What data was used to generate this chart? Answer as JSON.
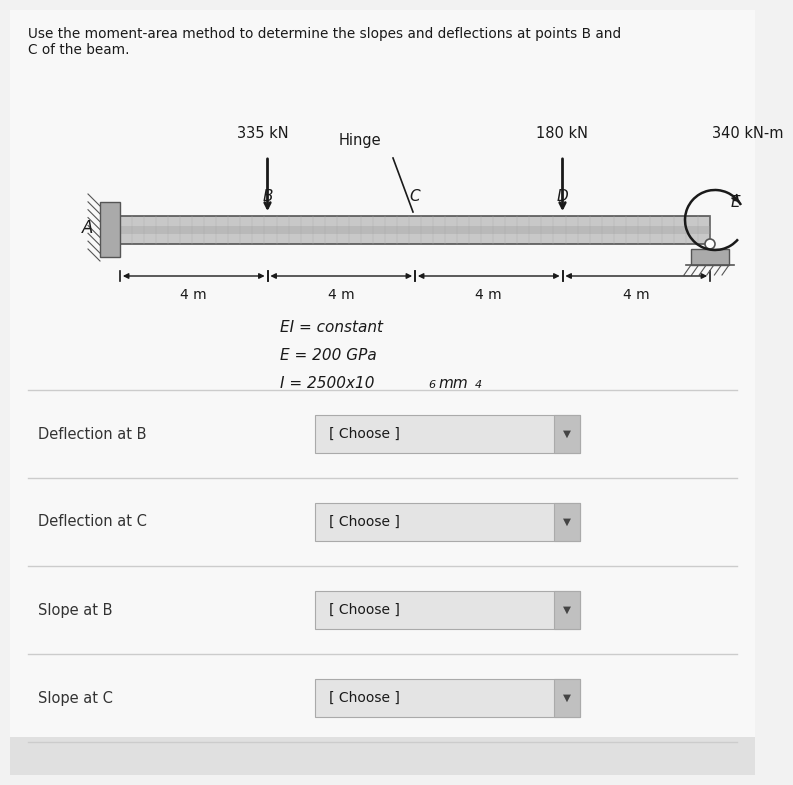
{
  "title_line1": "Use the moment-area method to determine the slopes and deflections at points B and",
  "title_line2": "C of the beam.",
  "bg_color": "#f2f2f2",
  "beam_color": "#5a5a5a",
  "load_335": "335 kN",
  "load_180": "180 kN",
  "load_moment": "340 kN-m",
  "hinge_label": "Hinge",
  "point_A": "A",
  "point_B": "B",
  "point_C": "C",
  "point_D": "D",
  "point_E": "E",
  "dim_4m": "4 m",
  "ei_text": "EI = constant",
  "e_text": "E = 200 GPa",
  "i_text": "I = 2500x10",
  "i_exp": "6",
  "i_unit": "mm",
  "i_exp2": "4",
  "rows": [
    {
      "label": "Deflection at B",
      "dropdown": "[ Choose ]"
    },
    {
      "label": "Deflection at C",
      "dropdown": "[ Choose ]"
    },
    {
      "label": "Slope at B",
      "dropdown": "[ Choose ]"
    },
    {
      "label": "Slope at C",
      "dropdown": "[ Choose ]"
    }
  ],
  "text_color": "#1a1a1a",
  "label_color": "#333333",
  "dropdown_bg": "#e0e0e0",
  "dropdown_text": "#1a1a1a",
  "separator_color": "#cccccc",
  "white_bg": "#f8f8f8"
}
